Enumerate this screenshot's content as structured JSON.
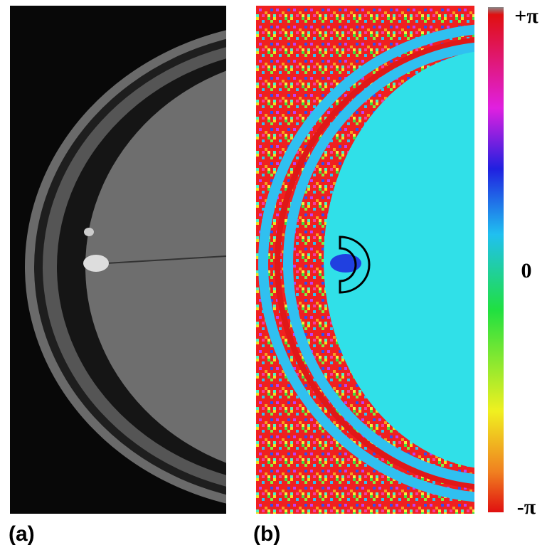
{
  "panels": [
    {
      "label": "(a)"
    },
    {
      "label": "(b)"
    }
  ],
  "colorbar": {
    "labels": [
      "+π",
      "0",
      "-π"
    ]
  }
}
